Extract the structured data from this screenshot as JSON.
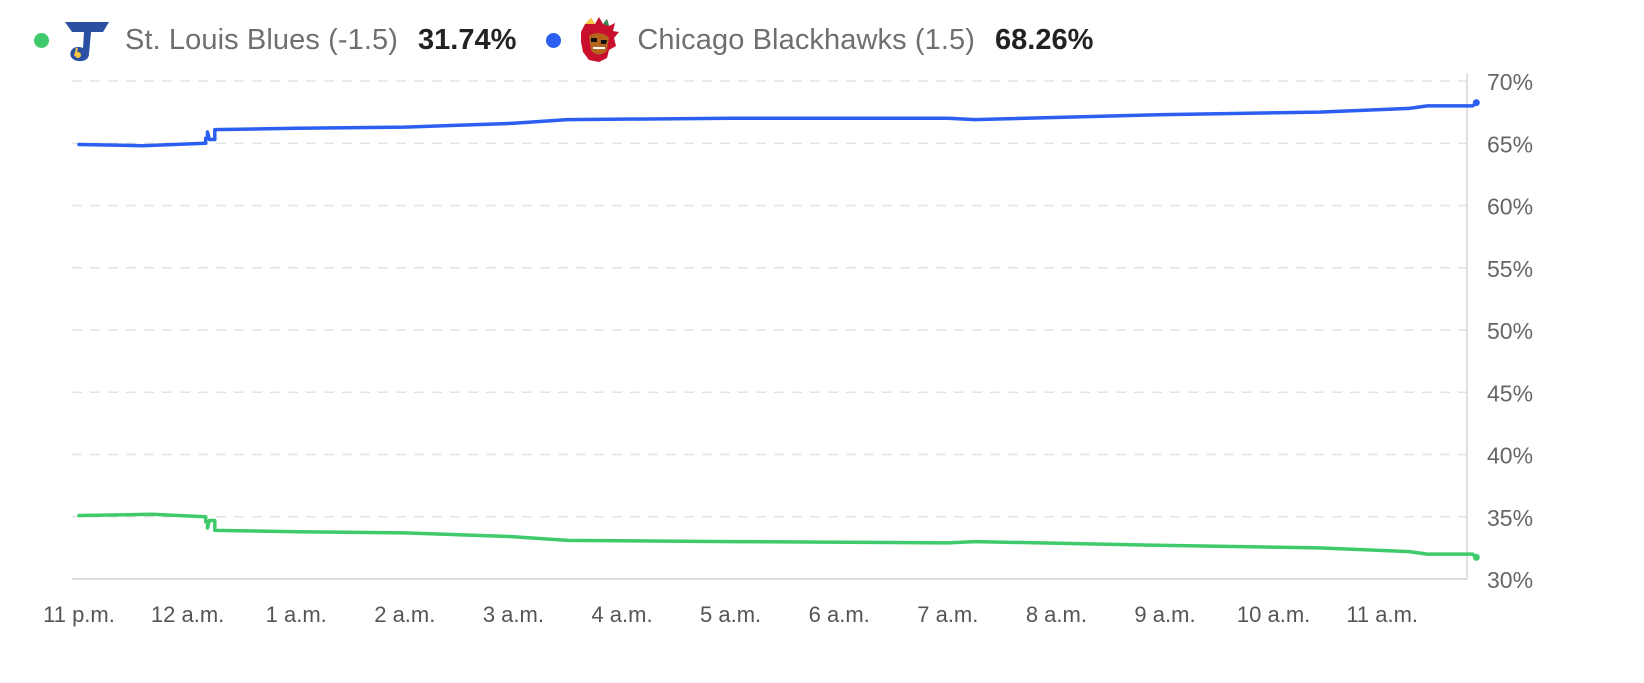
{
  "legend": {
    "items": [
      {
        "name": "St. Louis Blues (-1.5)",
        "value": "31.74%",
        "color": "#3fcb6b",
        "logo_icon": "st-louis-blues-logo-icon"
      },
      {
        "name": "Chicago Blackhawks (1.5)",
        "value": "68.26%",
        "color": "#2c5ff1",
        "logo_icon": "chicago-blackhawks-logo-icon"
      }
    ]
  },
  "chart_data": {
    "type": "line",
    "title": "",
    "xlabel": "",
    "ylabel": "",
    "x_ticks": [
      "11 p.m.",
      "12 a.m.",
      "1 a.m.",
      "2 a.m.",
      "3 a.m.",
      "4 a.m.",
      "5 a.m.",
      "6 a.m.",
      "7 a.m.",
      "8 a.m.",
      "9 a.m.",
      "10 a.m.",
      "11 a.m."
    ],
    "y_ticks": [
      "70%",
      "65%",
      "60%",
      "55%",
      "50%",
      "45%",
      "40%",
      "35%",
      "30%"
    ],
    "ylim": [
      30,
      70
    ],
    "y_axis_position": "right",
    "grid": "horizontal dashed",
    "legend_position": "top-left",
    "series": [
      {
        "name": "St. Louis Blues (-1.5)",
        "color": "#3fcb6b",
        "points": [
          [
            "11:00 p.m.",
            35.1
          ],
          [
            "11:40 p.m.",
            35.2
          ],
          [
            "12:10 a.m.",
            35.0
          ],
          [
            "12:10 a.m.",
            34.6
          ],
          [
            "12:11 a.m.",
            34.6
          ],
          [
            "12:11 a.m.",
            34.1
          ],
          [
            "12:12 a.m.",
            34.7
          ],
          [
            "12:15 a.m.",
            34.7
          ],
          [
            "12:15 a.m.",
            33.9
          ],
          [
            "1:00 a.m.",
            33.8
          ],
          [
            "2:00 a.m.",
            33.7
          ],
          [
            "3:00 a.m.",
            33.4
          ],
          [
            "3:30 a.m.",
            33.1
          ],
          [
            "5:00 a.m.",
            33.0
          ],
          [
            "7:00 a.m.",
            32.9
          ],
          [
            "7:15 a.m.",
            33.0
          ],
          [
            "9:00 a.m.",
            32.7
          ],
          [
            "10:25 a.m.",
            32.5
          ],
          [
            "11:15 a.m.",
            32.2
          ],
          [
            "11:25 a.m.",
            32.0
          ],
          [
            "11:50 a.m.",
            32.0
          ],
          [
            "11:52 a.m.",
            31.74
          ]
        ]
      },
      {
        "name": "Chicago Blackhawks (1.5)",
        "color": "#2c5ff1",
        "points": [
          [
            "11:00 p.m.",
            64.9
          ],
          [
            "11:35 p.m.",
            64.8
          ],
          [
            "12:10 a.m.",
            65.0
          ],
          [
            "12:10 a.m.",
            65.4
          ],
          [
            "12:11 a.m.",
            65.4
          ],
          [
            "12:11 a.m.",
            65.9
          ],
          [
            "12:12 a.m.",
            65.3
          ],
          [
            "12:15 a.m.",
            65.3
          ],
          [
            "12:15 a.m.",
            66.1
          ],
          [
            "1:00 a.m.",
            66.2
          ],
          [
            "2:00 a.m.",
            66.3
          ],
          [
            "3:00 a.m.",
            66.6
          ],
          [
            "3:30 a.m.",
            66.9
          ],
          [
            "5:00 a.m.",
            67.0
          ],
          [
            "7:00 a.m.",
            67.0
          ],
          [
            "7:15 a.m.",
            66.9
          ],
          [
            "9:00 a.m.",
            67.3
          ],
          [
            "10:25 a.m.",
            67.5
          ],
          [
            "11:15 a.m.",
            67.8
          ],
          [
            "11:25 a.m.",
            68.0
          ],
          [
            "11:50 a.m.",
            68.0
          ],
          [
            "11:52 a.m.",
            68.26
          ]
        ]
      }
    ]
  }
}
